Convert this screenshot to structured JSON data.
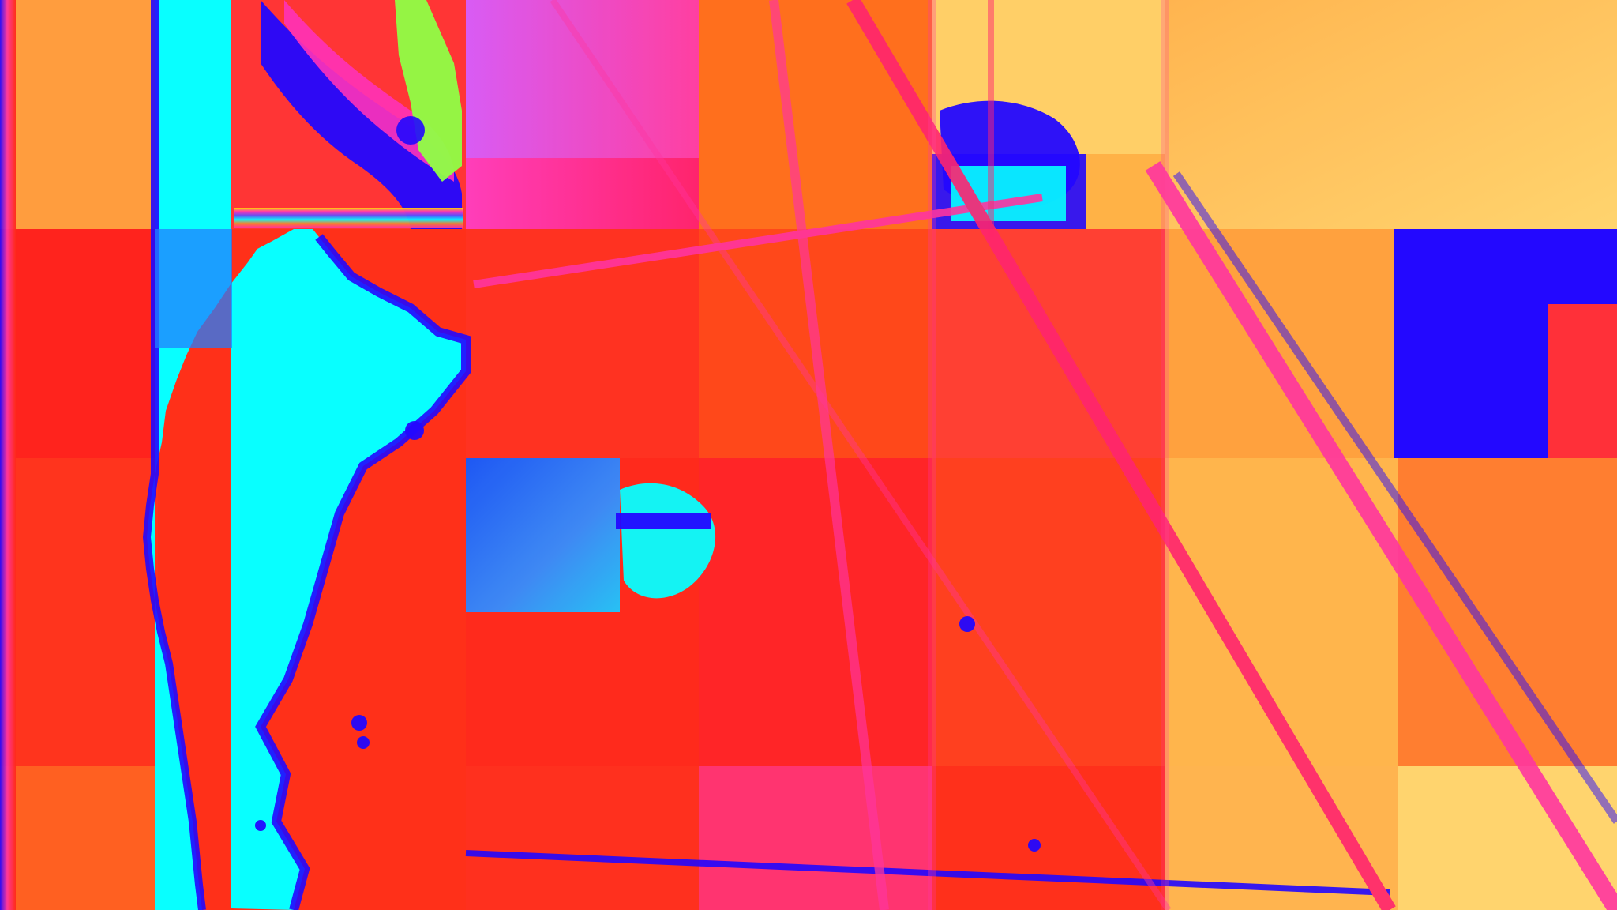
{
  "image": {
    "palette": {
      "deep_red": "#ff2410",
      "orange": "#ff6a1a",
      "peach": "#ffb24a",
      "pale_yellow": "#ffd36a",
      "magenta": "#ff2f9d",
      "violet": "#b14cff",
      "royal_blue": "#1c00ff",
      "cyan": "#00ffff",
      "sky_blue": "#1b7bff",
      "lime": "#8cff3f"
    }
  }
}
